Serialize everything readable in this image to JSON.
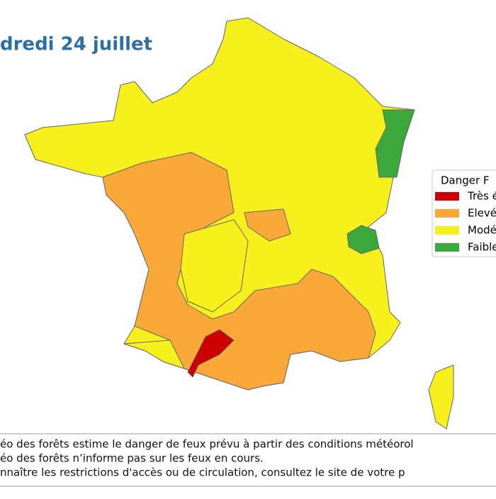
{
  "title": "dredi 24 juillet",
  "legend": {
    "title": "Danger F",
    "entries": [
      {
        "label": "Très é",
        "color": "#cc0000"
      },
      {
        "label": "Elevé",
        "color": "#f9a937"
      },
      {
        "label": "Modé",
        "color": "#f7f01c"
      },
      {
        "label": "Faible",
        "color": "#3ca83c"
      }
    ]
  },
  "footer": [
    "éo des forêts estime le danger de feux prévu à partir des conditions météorol",
    "éo des forêts n’informe pas sur les feux en cours.",
    "nnaître les restrictions d'accès ou de circulation, consultez le site de votre p"
  ]
}
